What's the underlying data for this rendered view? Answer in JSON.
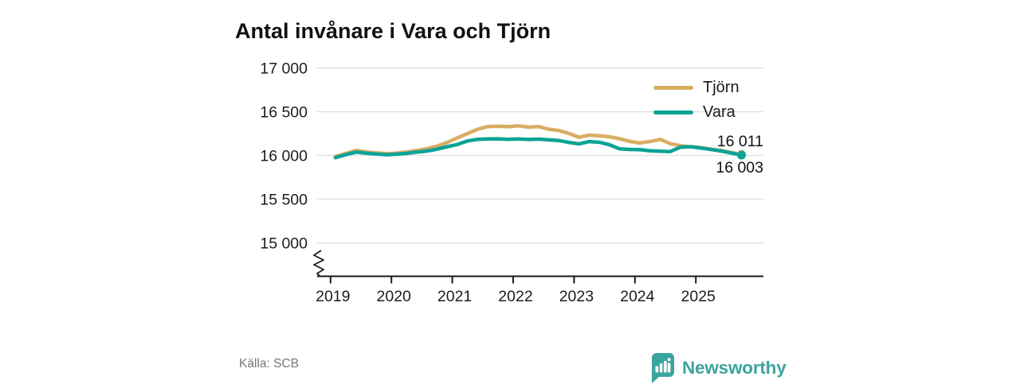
{
  "title": "Antal invånare i Vara och Tjörn",
  "source": "Källa: SCB",
  "logo": {
    "text": "Newsworthy",
    "color": "#3AA49D",
    "icon": "bar-chart-pin-icon"
  },
  "colors": {
    "tjorn": "#D8AD63",
    "vara": "#0AA396",
    "grid": "#DDDDDD",
    "axis": "#1A1A1A",
    "text": "#1D1D1D",
    "muted": "#767676",
    "background": "#FFFFFF"
  },
  "chart_data": {
    "type": "line",
    "title": "Antal invånare i Vara och Tjörn",
    "xlabel": "",
    "ylabel": "",
    "grid": "horizontal",
    "legend_position": "top-right",
    "axis_break": true,
    "ylim": [
      15000,
      17000
    ],
    "xlim": [
      2018.95,
      2026.1
    ],
    "y_ticks": [
      {
        "value": 17000,
        "label": "17 000"
      },
      {
        "value": 16500,
        "label": "16 500"
      },
      {
        "value": 16000,
        "label": "16 000"
      },
      {
        "value": 15500,
        "label": "15 500"
      },
      {
        "value": 15000,
        "label": "15 000"
      }
    ],
    "x_ticks": [
      {
        "value": 2019,
        "label": "2019"
      },
      {
        "value": 2020,
        "label": "2020"
      },
      {
        "value": 2021,
        "label": "2021"
      },
      {
        "value": 2022,
        "label": "2022"
      },
      {
        "value": 2023,
        "label": "2023"
      },
      {
        "value": 2024,
        "label": "2024"
      },
      {
        "value": 2025,
        "label": "2025"
      }
    ],
    "x": [
      2019.08,
      2019.25,
      2019.42,
      2019.58,
      2019.75,
      2019.92,
      2020.08,
      2020.25,
      2020.42,
      2020.58,
      2020.75,
      2020.92,
      2021.08,
      2021.25,
      2021.42,
      2021.58,
      2021.75,
      2021.92,
      2022.08,
      2022.25,
      2022.42,
      2022.58,
      2022.75,
      2022.92,
      2023.08,
      2023.25,
      2023.42,
      2023.58,
      2023.75,
      2023.92,
      2024.08,
      2024.25,
      2024.42,
      2024.58,
      2024.75,
      2024.92,
      2025.08,
      2025.25,
      2025.42,
      2025.58,
      2025.75
    ],
    "series": [
      {
        "name": "Tjörn",
        "color": "#D8AD63",
        "end_label": "16 011",
        "end_label_position": "above",
        "end_value": 16011,
        "values": [
          15988,
          16022,
          16058,
          16040,
          16030,
          16020,
          16026,
          16040,
          16056,
          16078,
          16105,
          16150,
          16200,
          16250,
          16300,
          16330,
          16335,
          16328,
          16338,
          16324,
          16330,
          16300,
          16285,
          16250,
          16208,
          16232,
          16225,
          16214,
          16190,
          16160,
          16142,
          16160,
          16184,
          16135,
          16110,
          16098,
          16090,
          16072,
          16055,
          16035,
          16011
        ]
      },
      {
        "name": "Vara",
        "color": "#0AA396",
        "end_label": "16 003",
        "end_label_position": "below",
        "end_value": 16003,
        "values": [
          15975,
          16008,
          16038,
          16026,
          16016,
          16008,
          16014,
          16024,
          16038,
          16050,
          16072,
          16100,
          16125,
          16165,
          16185,
          16188,
          16190,
          16185,
          16188,
          16183,
          16186,
          16178,
          16170,
          16148,
          16132,
          16158,
          16150,
          16123,
          16075,
          16068,
          16065,
          16054,
          16048,
          16045,
          16095,
          16100,
          16085,
          16068,
          16050,
          16028,
          16003
        ]
      }
    ]
  }
}
